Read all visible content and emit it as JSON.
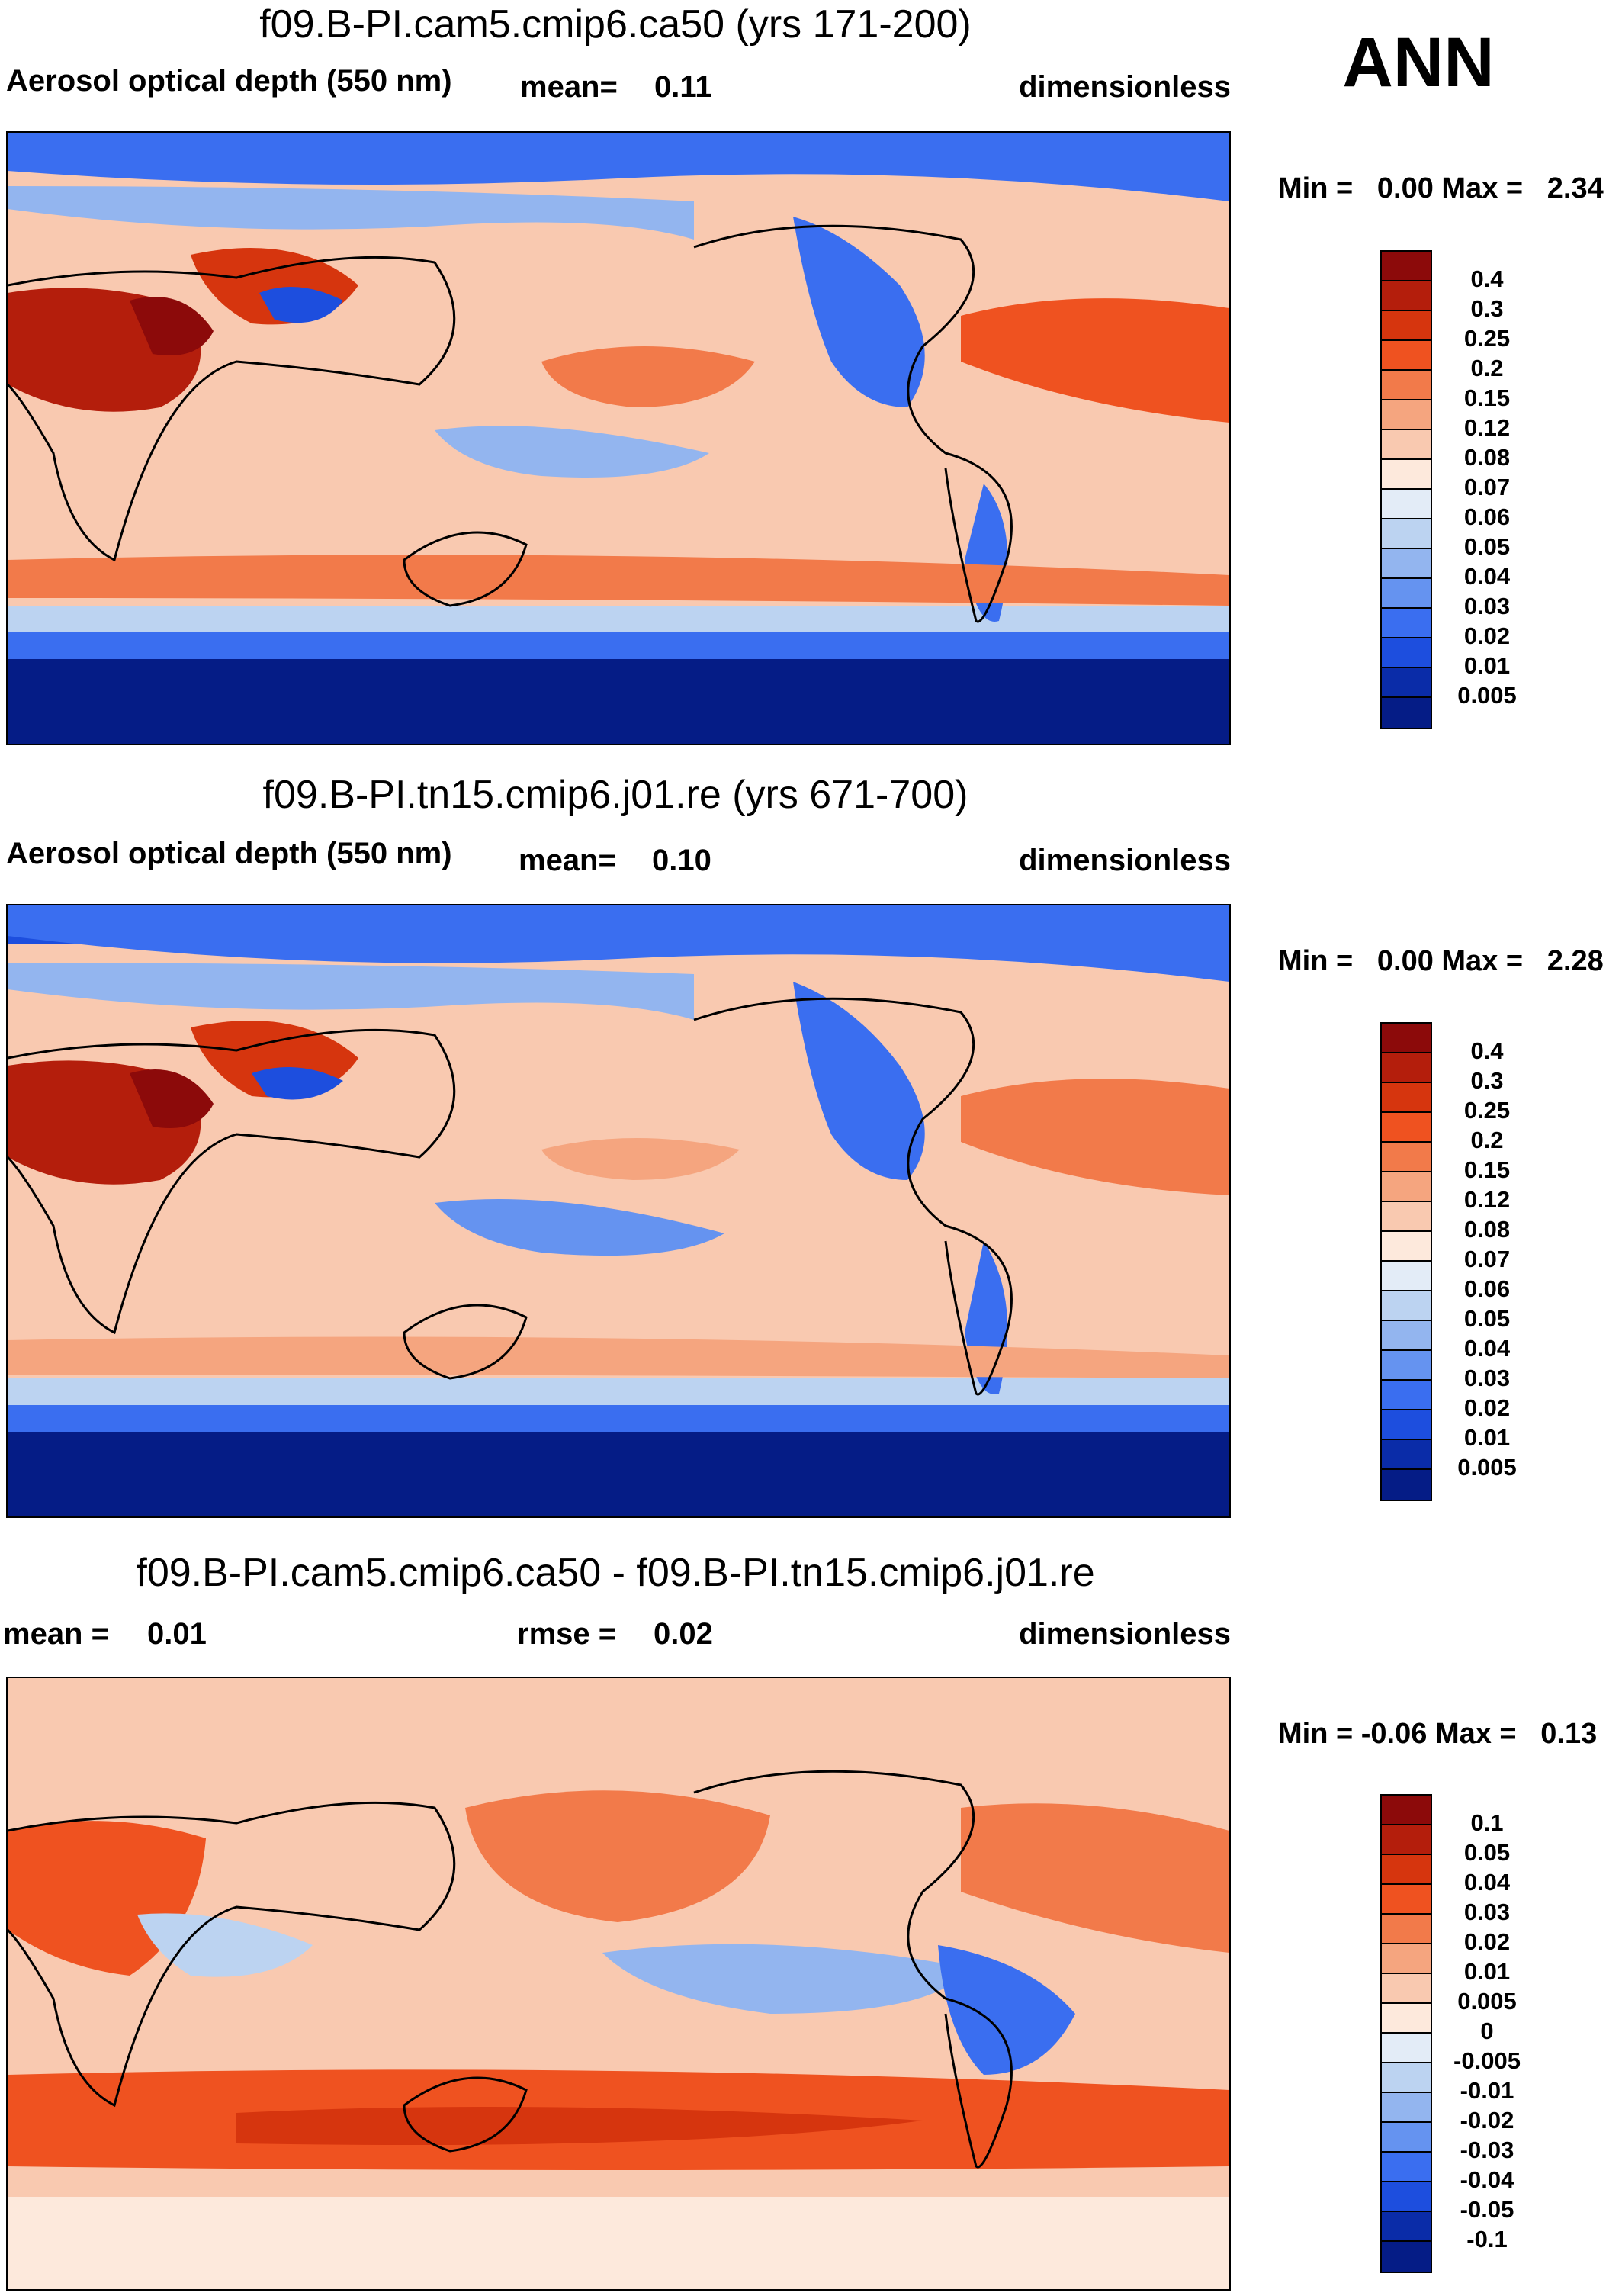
{
  "season_label": "ANN",
  "panels": [
    {
      "title": "f09.B-PI.cam5.cmip6.ca50 (yrs 171-200)",
      "left_label": "Aerosol optical depth (550 nm)",
      "stat_label": "mean=",
      "stat_value": "0.11",
      "unit_label": "dimensionless",
      "min_label": "Min =",
      "min_value": "0.00",
      "max_label": "Max =",
      "max_value": "2.34",
      "levels": [
        "0.4",
        "0.3",
        "0.25",
        "0.2",
        "0.15",
        "0.12",
        "0.08",
        "0.07",
        "0.06",
        "0.05",
        "0.04",
        "0.03",
        "0.02",
        "0.01",
        "0.005"
      ],
      "colors": [
        "#8c0a0a",
        "#b41e0c",
        "#d6350e",
        "#ef5220",
        "#f27a4a",
        "#f5a57f",
        "#f9c9b0",
        "#fde9dc",
        "#e3ecf7",
        "#bcd3f1",
        "#93b5ef",
        "#6593f0",
        "#3a6ef0",
        "#1d4ede",
        "#0a2ca8",
        "#051c86"
      ]
    },
    {
      "title": "f09.B-PI.tn15.cmip6.j01.re (yrs 671-700)",
      "left_label": "Aerosol optical depth (550 nm)",
      "stat_label": "mean=",
      "stat_value": "0.10",
      "unit_label": "dimensionless",
      "min_label": "Min =",
      "min_value": "0.00",
      "max_label": "Max =",
      "max_value": "2.28",
      "levels": [
        "0.4",
        "0.3",
        "0.25",
        "0.2",
        "0.15",
        "0.12",
        "0.08",
        "0.07",
        "0.06",
        "0.05",
        "0.04",
        "0.03",
        "0.02",
        "0.01",
        "0.005"
      ],
      "colors": [
        "#8c0a0a",
        "#b41e0c",
        "#d6350e",
        "#ef5220",
        "#f27a4a",
        "#f5a57f",
        "#f9c9b0",
        "#fde9dc",
        "#e3ecf7",
        "#bcd3f1",
        "#93b5ef",
        "#6593f0",
        "#3a6ef0",
        "#1d4ede",
        "#0a2ca8",
        "#051c86"
      ]
    },
    {
      "title": "f09.B-PI.cam5.cmip6.ca50 - f09.B-PI.tn15.cmip6.j01.re",
      "left_label": "mean =",
      "left_value": "0.01",
      "stat_label": "rmse =",
      "stat_value": "0.02",
      "unit_label": "dimensionless",
      "min_label": "Min =",
      "min_value": "-0.06",
      "max_label": "Max =",
      "max_value": "0.13",
      "levels": [
        "0.1",
        "0.05",
        "0.04",
        "0.03",
        "0.02",
        "0.01",
        "0.005",
        "0",
        "-0.005",
        "-0.01",
        "-0.02",
        "-0.03",
        "-0.04",
        "-0.05",
        "-0.1"
      ],
      "colors": [
        "#8c0a0a",
        "#b41e0c",
        "#d6350e",
        "#ef5220",
        "#f27a4a",
        "#f5a57f",
        "#f9c9b0",
        "#fde9dc",
        "#e3ecf7",
        "#bcd3f1",
        "#93b5ef",
        "#6593f0",
        "#3a6ef0",
        "#1d4ede",
        "#0a2ca8",
        "#051c86"
      ]
    }
  ]
}
